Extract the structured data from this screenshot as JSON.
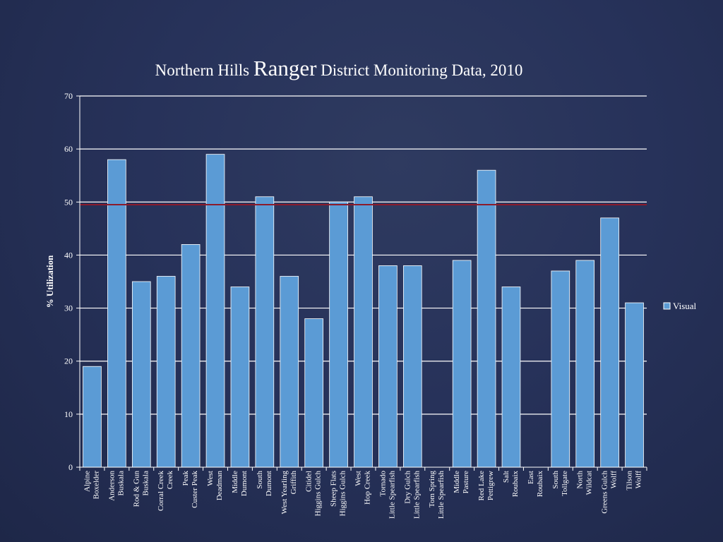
{
  "chart_data": {
    "type": "bar",
    "title_parts": [
      "Northern Hills ",
      "Ranger",
      " District Monitoring Data, 2010"
    ],
    "ylabel": "% Utilization",
    "xlabel": "",
    "ylim": [
      0,
      70
    ],
    "yticks": [
      0,
      10,
      20,
      30,
      40,
      50,
      60,
      70
    ],
    "grid": true,
    "legend_position": "right",
    "reference_line": {
      "value": 49.5,
      "color": "#8b1a2b"
    },
    "colors": {
      "bar": "#5b9bd5",
      "bar_stroke": "#ffffff",
      "grid": "#ffffff"
    },
    "categories": [
      [
        "Alpine",
        "Boxelder"
      ],
      [
        "Anderson",
        "Buskala"
      ],
      [
        "Rod & Gun",
        "Buskala"
      ],
      [
        "Corral Creek",
        "Creek"
      ],
      [
        "Peak",
        "Custer Peak"
      ],
      [
        "West",
        "Deadman"
      ],
      [
        "Middle",
        "Dumont"
      ],
      [
        "South",
        "Dumont"
      ],
      [
        "West Yearling",
        "Griffith"
      ],
      [
        "Citidel",
        "Higgins Gulch"
      ],
      [
        "Sheep Flats",
        "Higgins Gulch"
      ],
      [
        "West",
        "Hop Creek"
      ],
      [
        "Tornado",
        "Little Spearfish"
      ],
      [
        "Dry Gulch",
        "Little Spearfish"
      ],
      [
        "Tom Spring",
        "Little Spearfish"
      ],
      [
        "Middle",
        "Pasture"
      ],
      [
        "Red Lake",
        "Pettigrew"
      ],
      [
        "Salt",
        "Roubaix"
      ],
      [
        "East",
        "Roubaix"
      ],
      [
        "South",
        "Tollgate"
      ],
      [
        "North",
        "Wildcat"
      ],
      [
        "Greens Gulch",
        "Wolff"
      ],
      [
        "Tilson",
        "Wolff"
      ]
    ],
    "series": [
      {
        "name": "Visual",
        "values": [
          19,
          58,
          35,
          36,
          42,
          59,
          34,
          51,
          36,
          28,
          50,
          51,
          38,
          38,
          0,
          39,
          56,
          34,
          0,
          37,
          39,
          47,
          31
        ]
      }
    ]
  }
}
